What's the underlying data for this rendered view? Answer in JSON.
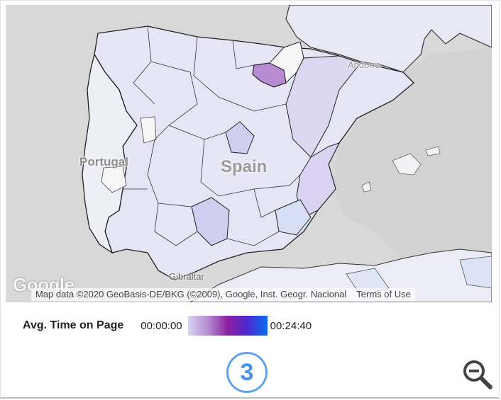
{
  "map": {
    "country_label": "Spain",
    "neighbor_labels": {
      "portugal": "Portugal",
      "andorra": "Andorra",
      "gibraltar": "Gibraltar"
    },
    "logo_text": "Google",
    "attribution": "Map data ©2020 GeoBasis-DE/BKG (©2009), Google, Inst. Geogr. Nacional",
    "terms_link": "Terms of Use"
  },
  "legend": {
    "title": "Avg. Time on Page",
    "min_label": "00:00:00",
    "max_label": "00:24:40",
    "gradient_colors": [
      "#d7d3f2",
      "#b58dd0",
      "#8e1fa0",
      "#4a2ad0",
      "#0a6cf0"
    ]
  },
  "pagination": {
    "current_page": "3"
  },
  "colors": {
    "ocean": "#d8d8d8",
    "region_fill": "#e6e6f6",
    "highlight_region": "#b98bd2",
    "accent": "#5fa3f0"
  },
  "icons": {
    "zoom": "zoom-out-icon"
  }
}
